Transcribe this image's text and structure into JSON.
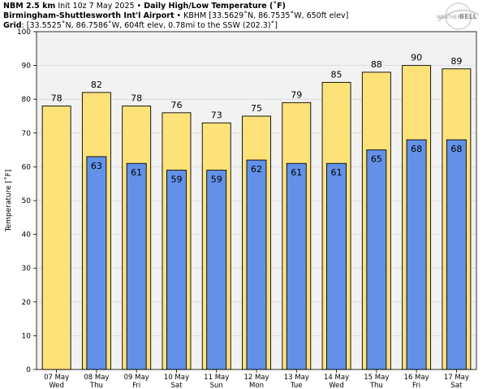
{
  "header": {
    "line1_bold_a": "NBM 2.5 km",
    "line1_plain": " Init 10z 7 May 2025 • ",
    "line1_bold_b": "Daily High/Low Temperature (˚F)",
    "line2_bold": "Birmingham-Shuttlesworth Int'l Airport",
    "line2_plain": " • KBHM [33.5629˚N, 86.7535˚W, 650ft elev]",
    "line3_bold": "Grid",
    "line3_plain": ": [33.5525˚N, 86.7586˚W, 604ft elev, 0.78mi to the SSW (202.3)˚]"
  },
  "logo": {
    "text_a": "WEATHER",
    "text_b": "BELL"
  },
  "colors": {
    "high": "#fde27a",
    "low": "#6391e8",
    "plot_bg": "#f2f2f2",
    "grid": "#d6d6d6"
  },
  "chart_data": {
    "type": "bar",
    "categories": [
      "07 May|Wed",
      "08 May|Thu",
      "09 May|Fri",
      "10 May|Sat",
      "11 May|Sun",
      "12 May|Mon",
      "13 May|Tue",
      "14 May|Wed",
      "15 May|Thu",
      "16 May|Fri",
      "17 May|Sat"
    ],
    "series": [
      {
        "values": [
          78,
          82,
          78,
          76,
          73,
          75,
          79,
          85,
          88,
          90,
          89
        ]
      },
      {
        "values": [
          null,
          63,
          61,
          59,
          59,
          62,
          61,
          61,
          65,
          68,
          68
        ]
      }
    ],
    "ylabel": "Temperature [˚F]",
    "ylim": [
      0,
      100
    ],
    "yticks": [
      0,
      10,
      20,
      30,
      40,
      50,
      60,
      70,
      80,
      90,
      100
    ],
    "grid": true
  }
}
